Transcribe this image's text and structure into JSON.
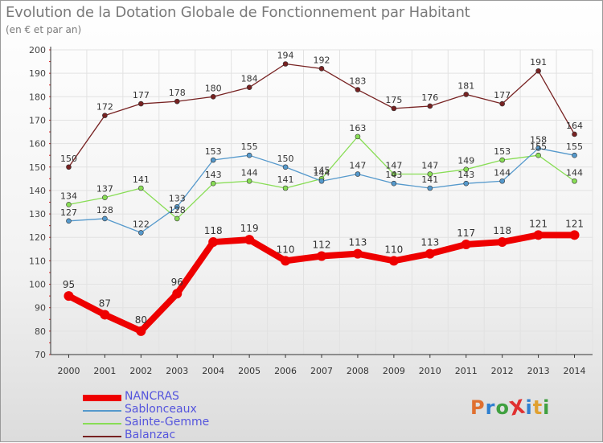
{
  "header": {
    "title": "Evolution de la Dotation Globale de Fonctionnement par Habitant",
    "subtitle": "(en € et par an)"
  },
  "logo": {
    "text": "ProXiti",
    "colors": [
      "#e07030",
      "#3080d0",
      "#40a040",
      "#e03030",
      "#3080d0",
      "#e0a030",
      "#40a040"
    ]
  },
  "chart_data": {
    "type": "line",
    "x": [
      "2000",
      "2001",
      "2002",
      "2003",
      "2004",
      "2005",
      "2006",
      "2007",
      "2008",
      "2009",
      "2010",
      "2011",
      "2012",
      "2013",
      "2014"
    ],
    "ylim": [
      70,
      200
    ],
    "yticks": [
      70,
      80,
      90,
      100,
      110,
      120,
      130,
      140,
      150,
      160,
      170,
      180,
      190,
      200
    ],
    "grid": true,
    "legend_position": "bottom-left",
    "series": [
      {
        "name": "NANCRAS",
        "color": "#ee0000",
        "values": [
          95,
          87,
          80,
          96,
          118,
          119,
          110,
          112,
          113,
          110,
          113,
          117,
          118,
          121,
          121
        ]
      },
      {
        "name": "Sablonceaux",
        "color": "#5599cc",
        "values": [
          127,
          128,
          122,
          133,
          153,
          155,
          150,
          144,
          147,
          143,
          141,
          143,
          144,
          158,
          155
        ]
      },
      {
        "name": "Sainte-Gemme",
        "color": "#88dd55",
        "values": [
          134,
          137,
          141,
          128,
          143,
          144,
          141,
          145,
          163,
          147,
          147,
          149,
          153,
          155,
          144
        ]
      },
      {
        "name": "Balanzac",
        "color": "#772222",
        "values": [
          150,
          172,
          177,
          178,
          180,
          184,
          194,
          192,
          183,
          175,
          176,
          181,
          177,
          191,
          164
        ]
      }
    ]
  }
}
